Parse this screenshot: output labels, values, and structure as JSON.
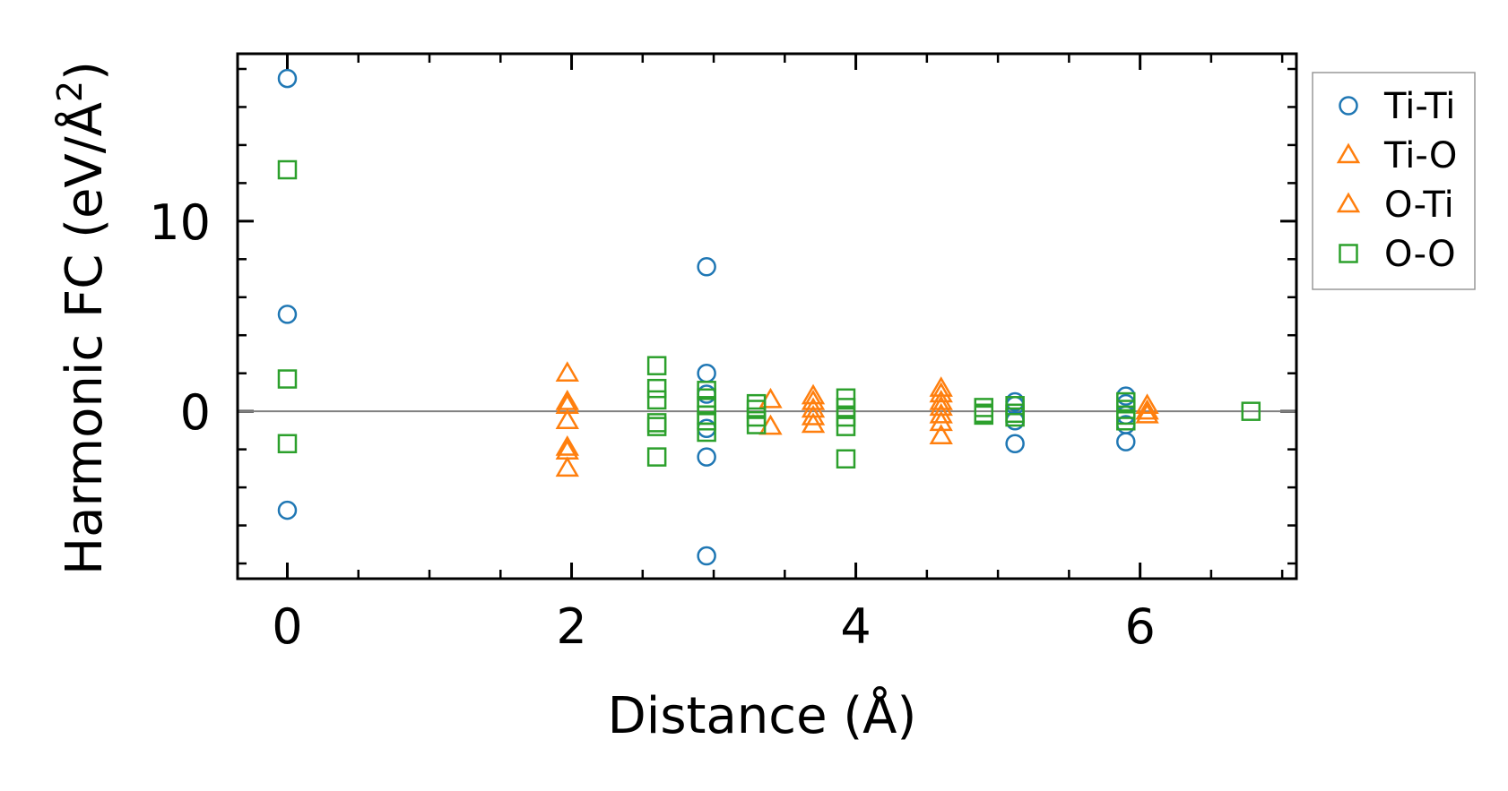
{
  "chart_data": {
    "type": "scatter",
    "xlabel": "Distance (Å)",
    "ylabel_main": "Harmonic FC (eV/Å",
    "ylabel_sup": "2",
    "ylabel_close": ")",
    "xlim": [
      -0.35,
      7.1
    ],
    "ylim": [
      -8.8,
      18.8
    ],
    "xticks": [
      0,
      2,
      4,
      6
    ],
    "xtick_labels": [
      "0",
      "2",
      "4",
      "6"
    ],
    "x_minor_step": 0.5,
    "yticks": [
      0,
      10
    ],
    "ytick_labels": [
      "0",
      "10"
    ],
    "y_minor_step": 2,
    "zero_line": true,
    "grid": false,
    "legend_position": "outside-right-top",
    "series": [
      {
        "name": "Ti-Ti",
        "marker": "circle",
        "color": "#1f77b4",
        "points": [
          [
            0,
            17.5
          ],
          [
            0,
            5.1
          ],
          [
            0,
            -5.2
          ],
          [
            2.95,
            7.6
          ],
          [
            2.95,
            2.0
          ],
          [
            2.95,
            0.9
          ],
          [
            2.95,
            -0.9
          ],
          [
            2.95,
            -2.4
          ],
          [
            2.95,
            -7.6
          ],
          [
            5.12,
            0.5
          ],
          [
            5.12,
            0.3
          ],
          [
            5.12,
            -0.5
          ],
          [
            5.12,
            -1.7
          ],
          [
            5.9,
            0.8
          ],
          [
            5.9,
            0.4
          ],
          [
            5.9,
            -0.2
          ],
          [
            5.9,
            -0.7
          ],
          [
            5.9,
            -1.6
          ]
        ]
      },
      {
        "name": "Ti-O",
        "marker": "triangle",
        "color": "#ff7f0e",
        "points": [
          [
            1.97,
            2.0
          ],
          [
            1.97,
            0.5
          ],
          [
            1.97,
            -0.5
          ],
          [
            1.97,
            -1.9
          ],
          [
            1.97,
            -3.0
          ],
          [
            3.4,
            0.6
          ],
          [
            3.4,
            -0.8
          ],
          [
            3.7,
            0.8
          ],
          [
            3.7,
            0.1
          ],
          [
            3.7,
            -0.7
          ],
          [
            4.6,
            1.2
          ],
          [
            4.6,
            0.5
          ],
          [
            4.6,
            -0.2
          ],
          [
            4.6,
            -1.3
          ],
          [
            6.05,
            0.3
          ],
          [
            6.05,
            -0.2
          ]
        ]
      },
      {
        "name": "O-Ti",
        "marker": "triangle",
        "color": "#ff7f0e",
        "points": [
          [
            1.97,
            0.3
          ],
          [
            1.97,
            -2.1
          ],
          [
            3.7,
            0.5
          ],
          [
            3.7,
            -0.3
          ],
          [
            4.6,
            0.9
          ],
          [
            4.6,
            0.2
          ],
          [
            4.6,
            -0.6
          ],
          [
            6.05,
            0.0
          ]
        ]
      },
      {
        "name": "O-O",
        "marker": "square",
        "color": "#2ca02c",
        "points": [
          [
            0,
            12.7
          ],
          [
            0,
            1.7
          ],
          [
            0,
            -1.7
          ],
          [
            2.6,
            2.4
          ],
          [
            2.6,
            1.2
          ],
          [
            2.6,
            0.6
          ],
          [
            2.6,
            -0.6
          ],
          [
            2.6,
            -0.8
          ],
          [
            2.6,
            -2.4
          ],
          [
            2.95,
            1.1
          ],
          [
            2.95,
            0.7
          ],
          [
            2.95,
            0.3
          ],
          [
            2.95,
            -0.2
          ],
          [
            2.95,
            -0.5
          ],
          [
            2.95,
            -1.1
          ],
          [
            3.3,
            0.4
          ],
          [
            3.3,
            0.1
          ],
          [
            3.3,
            -0.3
          ],
          [
            3.3,
            -0.7
          ],
          [
            3.93,
            0.7
          ],
          [
            3.93,
            0.2
          ],
          [
            3.93,
            -0.3
          ],
          [
            3.93,
            -0.8
          ],
          [
            3.93,
            -2.5
          ],
          [
            4.9,
            0.2
          ],
          [
            4.9,
            -0.1
          ],
          [
            4.9,
            -0.2
          ],
          [
            5.12,
            0.3
          ],
          [
            5.12,
            -0.1
          ],
          [
            5.12,
            -0.3
          ],
          [
            5.9,
            0.5
          ],
          [
            5.9,
            0.1
          ],
          [
            5.9,
            -0.2
          ],
          [
            5.9,
            -0.5
          ],
          [
            6.78,
            0.0
          ]
        ]
      }
    ]
  }
}
